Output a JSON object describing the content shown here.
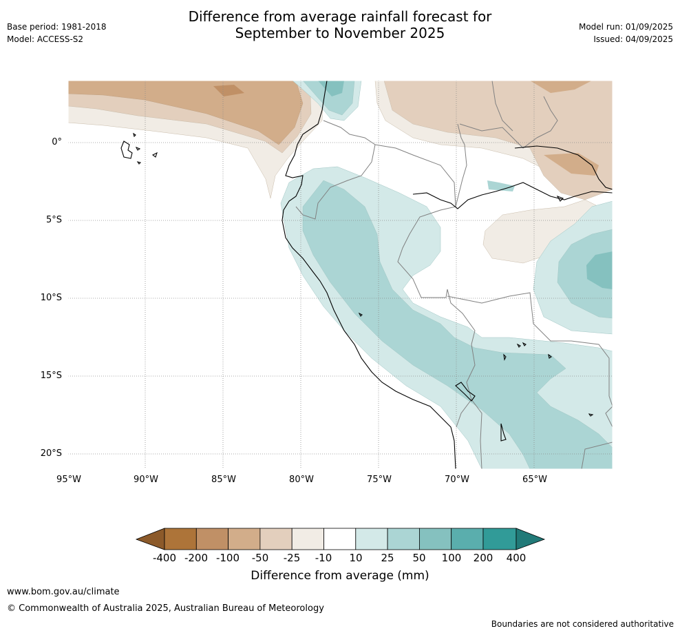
{
  "title_line1": "Difference from average rainfall forecast for",
  "title_line2": "September to November 2025",
  "meta_left": [
    "Base period: 1981-2018",
    "Model: ACCESS-S2"
  ],
  "meta_right": [
    "Model run: 01/09/2025",
    "Issued: 04/09/2025"
  ],
  "lat_labels": [
    "0°",
    "5°S",
    "10°S",
    "15°S",
    "20°S"
  ],
  "lon_labels": [
    "95°W",
    "90°W",
    "85°W",
    "80°W",
    "75°W",
    "70°W",
    "65°W"
  ],
  "colorbar": {
    "label": "Difference from average (mm)",
    "ticks": [
      "-400",
      "-200",
      "-100",
      "-50",
      "-25",
      "-10",
      "10",
      "25",
      "50",
      "100",
      "200",
      "400"
    ],
    "colors": [
      "#8c5a2a",
      "#ad7439",
      "#c09066",
      "#d2ad8a",
      "#e3cfbd",
      "#f1ece5",
      "#ffffff",
      "#d3e9e8",
      "#abd5d4",
      "#85c1bf",
      "#5aaead",
      "#319b98",
      "#217a78"
    ]
  },
  "footer": {
    "url": "www.bom.gov.au/climate",
    "copyright": "© Commonwealth of Australia 2025, Australian Bureau of Meteorology",
    "disclaimer": "Boundaries are not considered authoritative"
  }
}
